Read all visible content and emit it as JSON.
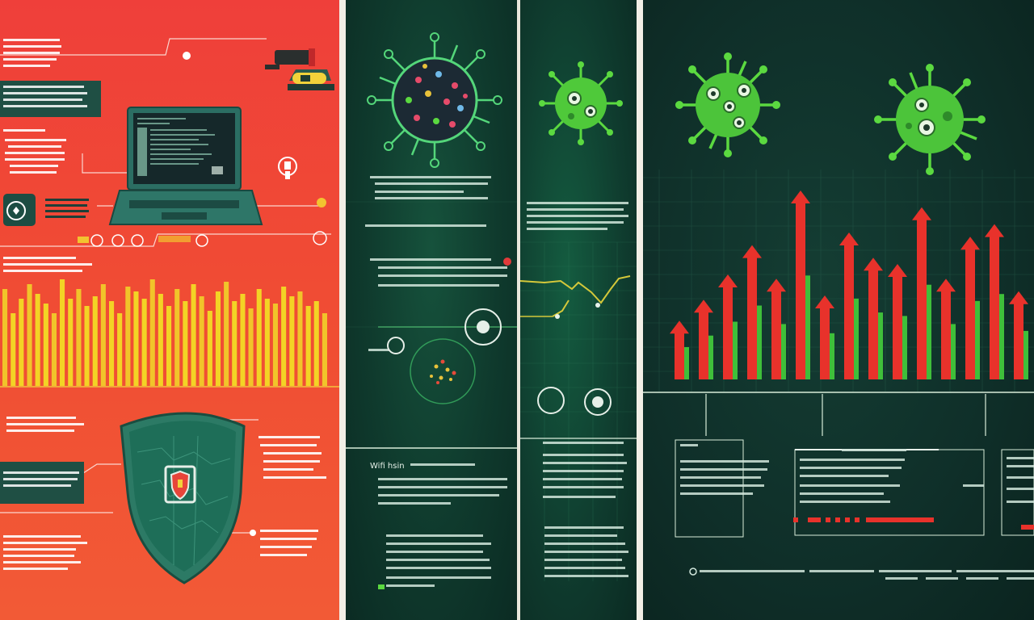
{
  "colors": {
    "red_bg": "#ef3f3a",
    "green_bg": "#0f3a2d",
    "dark_bg": "#0f2f29",
    "bar_yellow": "#f3d325",
    "virus_green": "#5bd940",
    "arrow_red": "#e8322b",
    "shield_teal": "#1e7a63",
    "laptop_teal": "#2b6e63"
  },
  "icons": [
    "laptop-icon",
    "camera-icon",
    "lightbulb-icon",
    "shield-icon",
    "virus-icon",
    "globe-icon",
    "arrow-up-icon"
  ],
  "text": {
    "red_left_1": "",
    "green1_heading": "Wifi hsin"
  },
  "chart_data": [
    {
      "type": "bar",
      "values": [
        40,
        30,
        36,
        42,
        38,
        34,
        30,
        44,
        36,
        40,
        33,
        37,
        42,
        35,
        30,
        41,
        39,
        36,
        44,
        38,
        33,
        40,
        35,
        42,
        37,
        31,
        39,
        43,
        35,
        38,
        32,
        40,
        36,
        34,
        41,
        37,
        39,
        33,
        35,
        30
      ],
      "title": "",
      "xlabel": "",
      "ylabel": ""
    },
    {
      "type": "bar",
      "values": [
        28,
        38,
        50,
        64,
        48,
        90,
        40,
        70,
        58,
        55,
        82,
        48,
        68,
        74,
        42
      ],
      "title": "",
      "xlabel": "",
      "ylabel": ""
    }
  ]
}
